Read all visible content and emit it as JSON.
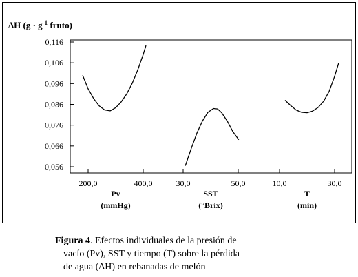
{
  "chart_data": {
    "type": "line",
    "ylabel": {
      "main": "ΔH (g · g",
      "sup": "-1",
      "tail": " fruto)"
    },
    "ylim": [
      0.056,
      0.116
    ],
    "yticks": [
      0.116,
      0.106,
      0.096,
      0.086,
      0.076,
      0.066,
      0.056
    ],
    "ytick_labels": [
      "0,116",
      "0,106",
      "0,096",
      "0,086",
      "0,076",
      "0,066",
      "0,056"
    ],
    "grid": false,
    "panels": [
      {
        "name": "Pv",
        "unit": "(mmHg)",
        "xlim": [
          150,
          450
        ],
        "xticks": [
          200,
          400
        ],
        "xtick_labels": [
          "200,0",
          "400,0"
        ],
        "x": [
          180,
          200,
          220,
          240,
          260,
          280,
          300,
          320,
          340,
          360,
          380,
          400,
          410
        ],
        "y": [
          0.1,
          0.0935,
          0.0888,
          0.0853,
          0.0833,
          0.0829,
          0.0844,
          0.0872,
          0.091,
          0.0961,
          0.1025,
          0.11,
          0.1143
        ]
      },
      {
        "name": "SST",
        "unit": "(°Brix)",
        "xlim": [
          25,
          55
        ],
        "xticks": [
          30,
          50
        ],
        "xtick_labels": [
          "30,0",
          "50,0"
        ],
        "x": [
          30.8,
          33,
          35,
          37,
          39,
          41,
          42.5,
          44,
          46,
          48,
          50.2
        ],
        "y": [
          0.0565,
          0.065,
          0.0722,
          0.078,
          0.0822,
          0.084,
          0.0838,
          0.082,
          0.078,
          0.073,
          0.069
        ]
      },
      {
        "name": "T",
        "unit": "(min)",
        "xlim": [
          5,
          35
        ],
        "xticks": [
          10,
          30
        ],
        "xtick_labels": [
          "10,0",
          "30,0"
        ],
        "x": [
          12,
          14,
          16,
          18,
          20,
          22,
          24,
          26,
          28,
          30,
          31.5
        ],
        "y": [
          0.088,
          0.0855,
          0.0833,
          0.0822,
          0.082,
          0.0828,
          0.0845,
          0.0875,
          0.0922,
          0.0995,
          0.106
        ]
      }
    ]
  },
  "caption": {
    "label": "Figura   4",
    "line1": ". Efectos individuales de la presión de",
    "line2": "vacío (Pv), SST y tiempo (T) sobre la  pérdida",
    "line3": "de agua (ΔH) en rebanadas de melón"
  }
}
